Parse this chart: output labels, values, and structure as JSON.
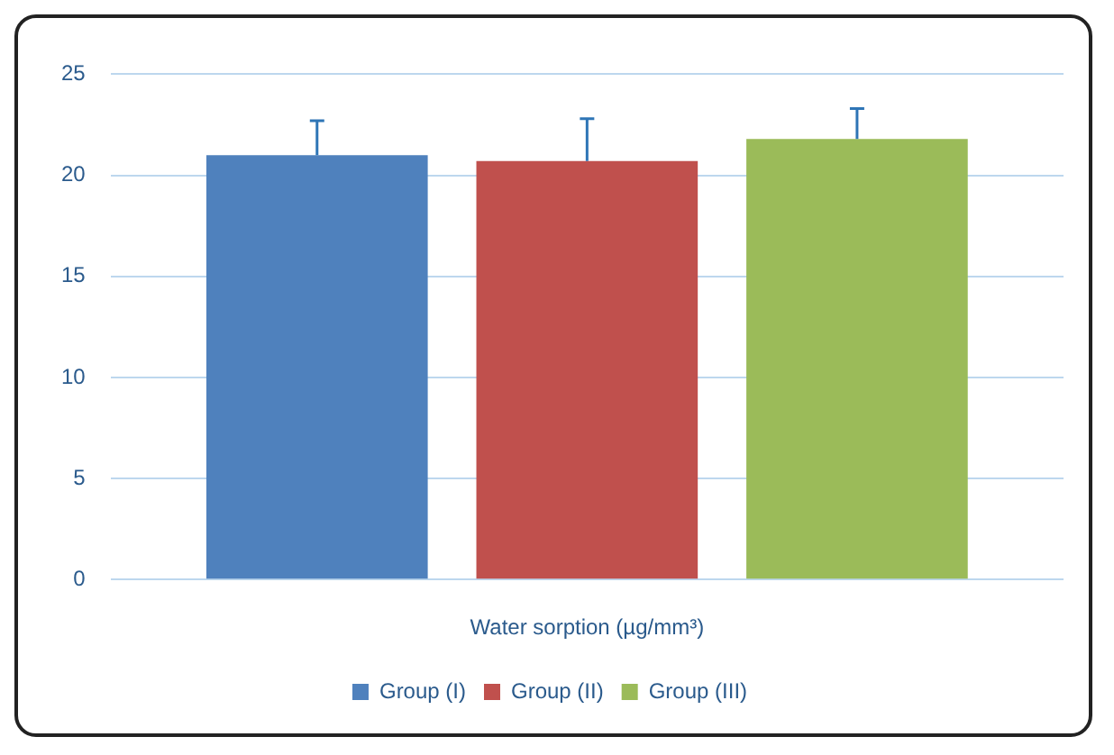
{
  "chart_data": {
    "type": "bar",
    "categories": [
      "Water sorption (µg/mm³)"
    ],
    "series": [
      {
        "name": "Group (I)",
        "color": "#4f81bd",
        "values": [
          21.0
        ],
        "errors": [
          [
            21.0,
            22.7
          ]
        ]
      },
      {
        "name": "Group (II)",
        "color": "#c0504d",
        "values": [
          20.7
        ],
        "errors": [
          [
            20.7,
            22.8
          ]
        ]
      },
      {
        "name": "Group (III)",
        "color": "#9bbb59",
        "values": [
          21.8
        ],
        "errors": [
          [
            21.8,
            23.3
          ]
        ]
      }
    ],
    "ylim": [
      0,
      25
    ],
    "yticks": [
      0,
      5,
      10,
      15,
      20,
      25
    ],
    "grid": "y",
    "legend": "bottom"
  }
}
